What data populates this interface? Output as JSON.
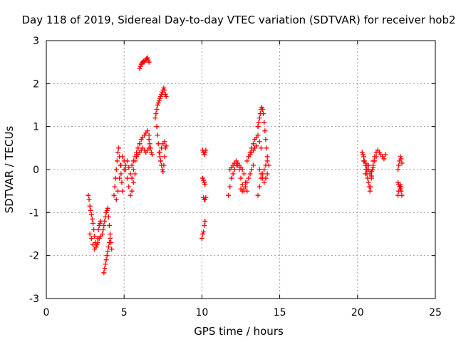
{
  "chart_data": {
    "type": "scatter",
    "title": "Day 118 of 2019, Sidereal Day-to-day VTEC variation (SDTVAR) for receiver hob2",
    "xlabel": "GPS time / hours",
    "ylabel": "SDTVAR / TECUs",
    "xlim": [
      0,
      25
    ],
    "ylim": [
      -3,
      3
    ],
    "xticks": [
      0,
      5,
      10,
      15,
      20,
      25
    ],
    "yticks": [
      -3,
      -2,
      -1,
      0,
      1,
      2,
      3
    ],
    "grid": true,
    "marker": "plus",
    "color": "#ff0000",
    "series": [
      {
        "name": "hob2",
        "x": [
          2.7,
          2.75,
          2.8,
          2.85,
          2.9,
          2.95,
          3.0,
          3.05,
          3.1,
          3.15,
          3.2,
          3.25,
          3.3,
          3.35,
          3.4,
          3.45,
          3.5,
          2.8,
          2.9,
          3.0,
          3.1,
          3.2,
          3.3,
          3.4,
          3.5,
          3.6,
          3.65,
          3.7,
          3.75,
          3.8,
          3.85,
          3.9,
          3.95,
          4.0,
          4.05,
          4.1,
          4.15,
          4.2,
          3.7,
          3.75,
          3.8,
          3.85,
          3.9,
          3.95,
          4.0,
          4.05,
          4.1,
          4.35,
          4.4,
          4.45,
          4.5,
          4.55,
          4.6,
          4.65,
          4.7,
          4.75,
          4.8,
          4.85,
          4.9,
          4.5,
          4.6,
          4.7,
          4.8,
          4.9,
          5.0,
          5.1,
          5.2,
          5.3,
          5.4,
          5.5,
          5.6,
          5.7,
          5.0,
          5.1,
          5.2,
          5.3,
          5.4,
          5.5,
          5.6,
          5.7,
          5.8,
          5.9,
          6.0,
          5.5,
          5.6,
          5.7,
          5.8,
          5.9,
          6.0,
          6.1,
          6.2,
          6.3,
          6.4,
          6.5,
          6.6,
          5.8,
          5.9,
          6.0,
          6.1,
          6.2,
          6.3,
          6.4,
          6.5,
          6.6,
          6.0,
          6.05,
          6.1,
          6.15,
          6.2,
          6.25,
          6.3,
          6.35,
          6.4,
          6.45,
          6.5,
          6.55,
          6.6,
          6.6,
          6.65,
          6.7,
          6.75,
          6.8,
          7.0,
          7.05,
          7.1,
          7.15,
          7.2,
          7.25,
          7.3,
          7.35,
          7.4,
          7.45,
          7.5,
          7.55,
          7.6,
          7.65,
          7.7,
          7.1,
          7.15,
          7.2,
          7.25,
          7.3,
          7.35,
          7.4,
          7.45,
          7.5,
          7.55,
          7.6,
          7.65,
          7.3,
          7.4,
          7.5,
          7.6,
          7.7,
          10.0,
          10.05,
          10.1,
          10.15,
          10.2,
          10.05,
          10.1,
          10.15,
          10.2,
          10.1,
          10.15,
          10.2,
          10.25,
          10.05,
          10.1,
          10.15,
          10.2,
          10.25,
          11.7,
          11.8,
          11.9,
          12.0,
          12.1,
          12.2,
          12.3,
          12.4,
          12.5,
          12.6,
          12.7,
          12.8,
          12.9,
          11.8,
          11.9,
          12.0,
          12.1,
          12.2,
          12.3,
          12.4,
          12.5,
          12.6,
          12.7,
          12.5,
          12.6,
          12.7,
          12.8,
          12.9,
          13.0,
          13.1,
          13.2,
          13.3,
          12.9,
          13.0,
          13.1,
          13.2,
          13.3,
          13.4,
          13.5,
          13.6,
          13.7,
          13.8,
          13.0,
          13.1,
          13.2,
          13.3,
          13.4,
          13.5,
          13.6,
          13.65,
          13.7,
          13.75,
          13.8,
          13.85,
          13.9,
          13.95,
          14.0,
          14.05,
          14.1,
          14.15,
          14.2,
          13.6,
          13.7,
          13.8,
          13.9,
          14.0,
          14.1,
          14.2,
          14.3,
          13.7,
          13.8,
          13.9,
          14.0,
          14.1,
          14.2,
          20.3,
          20.35,
          20.4,
          20.45,
          20.5,
          20.55,
          20.6,
          20.65,
          20.7,
          20.75,
          20.8,
          20.85,
          20.9,
          20.95,
          21.0,
          20.4,
          20.5,
          20.6,
          20.7,
          20.8,
          20.9,
          21.0,
          21.1,
          21.2,
          21.0,
          21.1,
          21.2,
          21.3,
          21.4,
          21.5,
          21.6,
          21.7,
          21.8,
          20.5,
          20.6,
          20.7,
          20.8,
          20.9,
          22.6,
          22.65,
          22.7,
          22.75,
          22.8,
          22.85,
          22.6,
          22.65,
          22.7,
          22.75,
          22.8,
          22.85,
          22.6,
          22.65,
          22.7,
          22.75,
          22.8
        ],
        "y": [
          -0.6,
          -0.7,
          -0.85,
          -0.95,
          -1.05,
          -1.15,
          -1.25,
          -1.4,
          -1.55,
          -1.7,
          -1.8,
          -1.75,
          -1.6,
          -1.4,
          -1.3,
          -1.25,
          -1.2,
          -1.5,
          -1.6,
          -1.75,
          -1.85,
          -1.8,
          -1.7,
          -1.6,
          -1.55,
          -1.5,
          -1.4,
          -1.3,
          -1.2,
          -1.1,
          -1.0,
          -0.95,
          -0.9,
          -1.1,
          -1.3,
          -1.5,
          -1.7,
          -1.85,
          -2.4,
          -2.3,
          -2.2,
          -2.1,
          -2.0,
          -1.9,
          -1.8,
          -1.7,
          -1.6,
          -0.6,
          -0.4,
          -0.2,
          0.0,
          0.2,
          0.4,
          0.5,
          0.3,
          0.1,
          -0.1,
          -0.3,
          -0.5,
          -0.7,
          -0.5,
          -0.2,
          0.1,
          0.3,
          0.2,
          0.0,
          -0.2,
          -0.4,
          -0.6,
          -0.5,
          -0.3,
          -0.1,
          0.0,
          0.1,
          0.2,
          0.05,
          -0.1,
          -0.2,
          0.0,
          0.2,
          0.35,
          0.5,
          0.6,
          0.1,
          0.2,
          0.3,
          0.4,
          0.5,
          0.6,
          0.7,
          0.75,
          0.8,
          0.85,
          0.9,
          0.8,
          0.3,
          0.35,
          0.4,
          0.45,
          0.5,
          0.45,
          0.4,
          0.45,
          0.5,
          2.35,
          2.4,
          2.45,
          2.48,
          2.5,
          2.52,
          2.5,
          2.55,
          2.55,
          2.58,
          2.6,
          2.55,
          2.5,
          0.7,
          0.6,
          0.5,
          0.4,
          0.35,
          1.2,
          1.3,
          1.4,
          1.5,
          1.55,
          1.6,
          1.65,
          1.7,
          1.75,
          1.8,
          1.85,
          1.9,
          1.85,
          1.75,
          1.7,
          1.0,
          0.8,
          0.6,
          0.4,
          0.3,
          0.2,
          0.1,
          0.0,
          -0.05,
          0.1,
          0.3,
          0.5,
          0.4,
          0.5,
          0.6,
          0.65,
          0.55,
          -1.6,
          -1.5,
          -1.45,
          -1.3,
          -1.2,
          -0.2,
          -0.25,
          -0.3,
          -0.35,
          -0.65,
          -0.7,
          -0.7,
          -0.65,
          0.45,
          0.4,
          0.35,
          0.4,
          0.45,
          -0.6,
          -0.4,
          -0.2,
          -0.1,
          0.0,
          0.1,
          0.15,
          0.1,
          0.05,
          0.0,
          -0.1,
          -0.3,
          -0.5,
          0.0,
          0.05,
          0.1,
          0.15,
          0.2,
          0.1,
          0.0,
          -0.2,
          -0.35,
          -0.45,
          -0.45,
          -0.5,
          -0.5,
          -0.4,
          -0.3,
          -0.2,
          -0.1,
          0.0,
          0.1,
          0.2,
          0.3,
          0.4,
          0.5,
          0.6,
          0.7,
          0.75,
          0.8,
          0.65,
          0.5,
          0.3,
          0.35,
          0.4,
          0.45,
          0.5,
          0.55,
          1.0,
          1.1,
          1.2,
          1.3,
          1.4,
          1.45,
          1.4,
          1.3,
          1.1,
          0.9,
          0.7,
          0.5,
          0.3,
          -0.6,
          -0.4,
          -0.2,
          -0.1,
          0.0,
          0.1,
          0.2,
          0.1,
          0.0,
          -0.1,
          -0.2,
          -0.3,
          -0.2,
          -0.1,
          0.4,
          0.35,
          0.3,
          0.2,
          0.1,
          0.0,
          -0.1,
          -0.2,
          -0.3,
          -0.4,
          -0.5,
          -0.4,
          -0.2,
          0.0,
          0.1,
          0.2,
          0.15,
          0.1,
          0.0,
          -0.1,
          -0.05,
          0.05,
          0.2,
          0.3,
          0.2,
          0.3,
          0.4,
          0.45,
          0.4,
          0.35,
          0.3,
          0.25,
          0.35,
          -0.1,
          0.0,
          0.1,
          -0.05,
          -0.15,
          -0.6,
          -0.5,
          -0.4,
          -0.35,
          -0.5,
          -0.6,
          0.0,
          0.1,
          0.2,
          0.3,
          0.25,
          0.15,
          -0.3,
          -0.35,
          -0.4,
          -0.45,
          -0.4
        ]
      }
    ]
  }
}
